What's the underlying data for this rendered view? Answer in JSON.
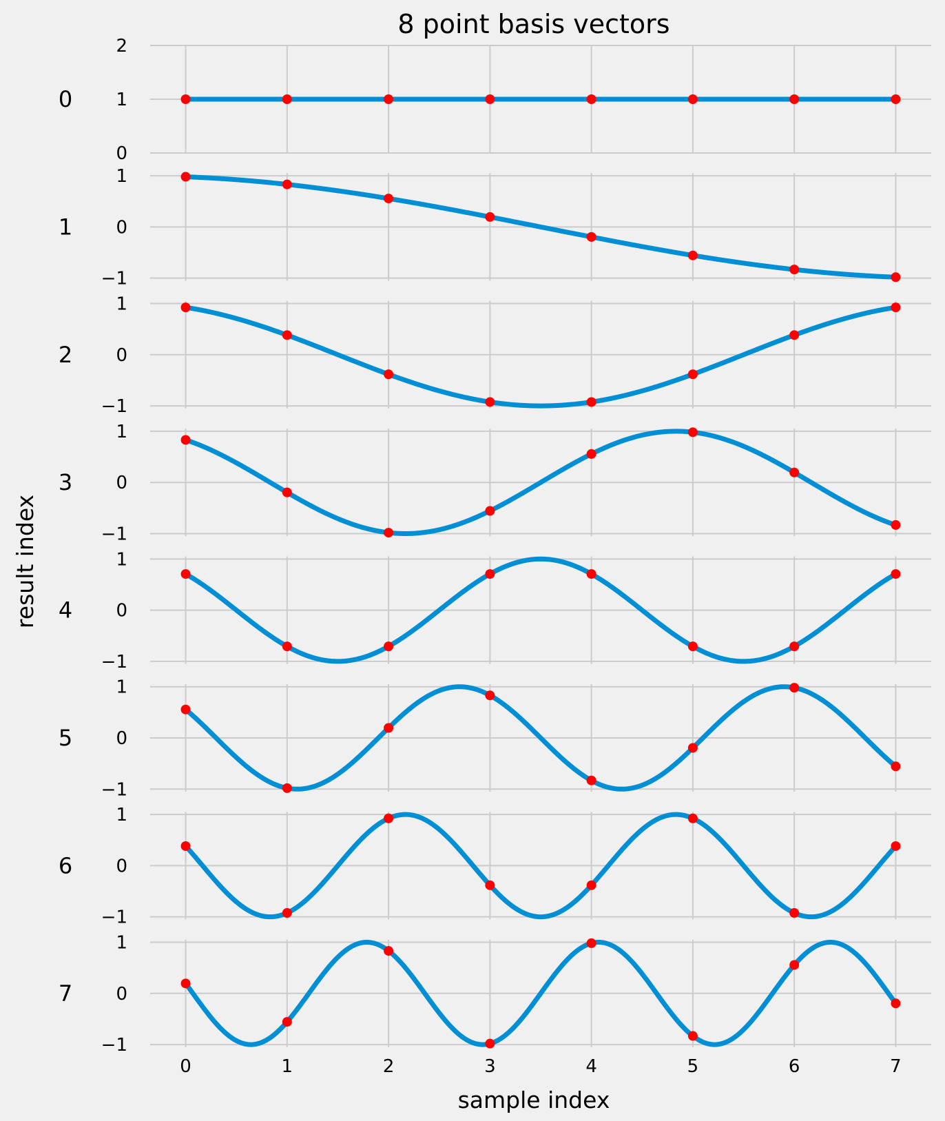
{
  "chart_data": {
    "type": "line",
    "title": "8 point basis vectors",
    "xlabel": "sample index",
    "ylabel": "result index",
    "x_ticks": [
      "0",
      "1",
      "2",
      "3",
      "4",
      "5",
      "6",
      "7"
    ],
    "x_values": [
      0,
      1,
      2,
      3,
      4,
      5,
      6,
      7
    ],
    "xlim": [
      -0.35,
      7.35
    ],
    "grid": true,
    "colors": {
      "curve": "#008fd5",
      "points": "#ff0000",
      "background": "#f0f0f0",
      "grid": "#cbcbcb"
    },
    "rows": [
      {
        "row_label": "0",
        "frequency": 0,
        "ylim": [
          0,
          2
        ],
        "y_ticks": [
          "0",
          "1",
          "2"
        ],
        "y_tick_values": [
          0,
          1,
          2
        ],
        "values": [
          1,
          1,
          1,
          1,
          1,
          1,
          1,
          1
        ]
      },
      {
        "row_label": "1",
        "frequency": 1,
        "ylim": [
          -1.05,
          1.05
        ],
        "y_ticks": [
          "−1",
          "0",
          "1"
        ],
        "y_tick_values": [
          -1,
          0,
          1
        ],
        "values": [
          0.981,
          0.831,
          0.556,
          0.195,
          -0.195,
          -0.556,
          -0.831,
          -0.981
        ]
      },
      {
        "row_label": "2",
        "frequency": 2,
        "ylim": [
          -1.05,
          1.05
        ],
        "y_ticks": [
          "−1",
          "0",
          "1"
        ],
        "y_tick_values": [
          -1,
          0,
          1
        ],
        "values": [
          0.924,
          0.383,
          -0.383,
          -0.924,
          -0.924,
          -0.383,
          0.383,
          0.924
        ]
      },
      {
        "row_label": "3",
        "frequency": 3,
        "ylim": [
          -1.05,
          1.05
        ],
        "y_ticks": [
          "−1",
          "0",
          "1"
        ],
        "y_tick_values": [
          -1,
          0,
          1
        ],
        "values": [
          0.831,
          -0.195,
          -0.981,
          -0.556,
          0.556,
          0.981,
          0.195,
          -0.831
        ]
      },
      {
        "row_label": "4",
        "frequency": 4,
        "ylim": [
          -1.05,
          1.05
        ],
        "y_ticks": [
          "−1",
          "0",
          "1"
        ],
        "y_tick_values": [
          -1,
          0,
          1
        ],
        "values": [
          0.707,
          -0.707,
          -0.707,
          0.707,
          0.707,
          -0.707,
          -0.707,
          0.707
        ]
      },
      {
        "row_label": "5",
        "frequency": 5,
        "ylim": [
          -1.05,
          1.05
        ],
        "y_ticks": [
          "−1",
          "0",
          "1"
        ],
        "y_tick_values": [
          -1,
          0,
          1
        ],
        "values": [
          0.556,
          -0.981,
          0.195,
          0.831,
          -0.831,
          -0.195,
          0.981,
          -0.556
        ]
      },
      {
        "row_label": "6",
        "frequency": 6,
        "ylim": [
          -1.05,
          1.05
        ],
        "y_ticks": [
          "−1",
          "0",
          "1"
        ],
        "y_tick_values": [
          -1,
          0,
          1
        ],
        "values": [
          0.383,
          -0.924,
          0.924,
          -0.383,
          -0.383,
          0.924,
          -0.924,
          0.383
        ]
      },
      {
        "row_label": "7",
        "frequency": 7,
        "ylim": [
          -1.05,
          1.05
        ],
        "y_ticks": [
          "−1",
          "0",
          "1"
        ],
        "y_tick_values": [
          -1,
          0,
          1
        ],
        "values": [
          0.195,
          -0.556,
          0.831,
          -0.981,
          0.981,
          -0.831,
          0.556,
          -0.195
        ]
      }
    ]
  }
}
